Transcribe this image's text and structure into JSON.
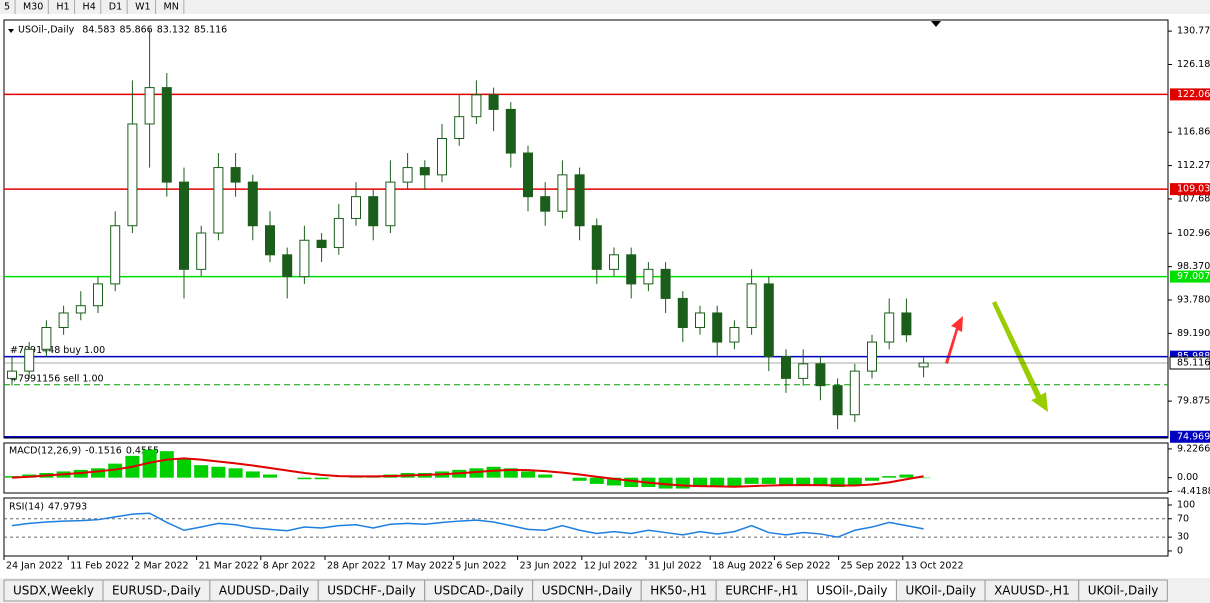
{
  "toolbar": {
    "timeframes": [
      "5",
      "M30",
      "H1",
      "H4",
      "D1",
      "W1",
      "MN"
    ]
  },
  "chart": {
    "symbol": "USOil-,Daily",
    "candle_color": "#1b5e1b",
    "open": [
      83,
      84,
      87,
      90,
      92,
      93,
      96,
      104,
      118,
      123,
      110,
      98,
      103,
      112,
      110,
      104,
      100,
      97,
      102,
      101,
      105,
      108,
      104,
      110,
      112,
      111,
      116,
      119,
      122,
      120,
      114,
      108,
      106,
      111,
      104,
      98,
      100,
      96,
      98,
      94,
      90,
      92,
      88,
      90,
      96,
      86,
      83,
      85,
      82,
      78,
      84,
      88,
      92,
      84.583
    ],
    "high": [
      86,
      88,
      91,
      93,
      95,
      97,
      106,
      124,
      131,
      125,
      112,
      104,
      114,
      114,
      111,
      106,
      101,
      104,
      103,
      107,
      110,
      109,
      113,
      114,
      113,
      118,
      122,
      124,
      123,
      121,
      115,
      110,
      113,
      112,
      105,
      101,
      101,
      99,
      99,
      95,
      93,
      93,
      91,
      98,
      97,
      87,
      87,
      86,
      83,
      85,
      89,
      94,
      94,
      85.866
    ],
    "low": [
      82,
      83,
      86,
      89,
      91,
      92,
      95,
      103,
      112,
      108,
      94,
      97,
      102,
      108,
      102,
      99,
      94,
      96,
      99,
      100,
      104,
      102,
      103,
      109,
      109,
      110,
      115,
      118,
      117,
      112,
      106,
      104,
      105,
      102,
      96,
      97,
      94,
      95,
      92,
      88,
      89,
      86,
      87,
      89,
      84,
      81,
      82,
      80,
      76,
      77,
      83,
      87,
      88,
      83.132
    ],
    "close": [
      84,
      87,
      90,
      92,
      93,
      96,
      104,
      118,
      123,
      110,
      98,
      103,
      112,
      110,
      104,
      100,
      97,
      102,
      101,
      105,
      108,
      104,
      110,
      112,
      111,
      116,
      119,
      122,
      120,
      114,
      108,
      106,
      111,
      104,
      98,
      100,
      96,
      98,
      94,
      90,
      92,
      88,
      90,
      96,
      86,
      83,
      85,
      82,
      78,
      84,
      88,
      92,
      89,
      85.116
    ],
    "ylim": [
      74.8,
      132.3
    ],
    "yticks": [
      {
        "value": 130.77,
        "label": "130.770"
      },
      {
        "value": 126.18,
        "label": "126.180"
      },
      {
        "value": 116.865,
        "label": "116.865"
      },
      {
        "value": 112.275,
        "label": "112.275"
      },
      {
        "value": 107.685,
        "label": "107.685"
      },
      {
        "value": 102.96,
        "label": "102.960"
      },
      {
        "value": 98.37,
        "label": "98.370"
      },
      {
        "value": 93.78,
        "label": "93.780"
      },
      {
        "value": 89.19,
        "label": "89.190"
      },
      {
        "value": 79.875,
        "label": "79.875"
      }
    ],
    "levels": [
      {
        "value": 122.066,
        "color": "#e00000"
      },
      {
        "value": 109.036,
        "color": "#e00000"
      },
      {
        "value": 97.007,
        "color": "#00e000"
      },
      {
        "value": 85.988,
        "color": "#0000c0"
      },
      {
        "value": 74.969,
        "color": "#0000c0"
      }
    ],
    "orders": [
      {
        "label": "#7991448 buy 1.00",
        "value": 85.988,
        "style": "solid"
      },
      {
        "label": "#7991156 sell 1.00",
        "value": 82.12,
        "style": "dashed"
      }
    ],
    "dates": [
      "24 Jan 2022",
      "11 Feb 2022",
      "2 Mar 2022",
      "21 Mar 2022",
      "8 Apr 2022",
      "28 Apr 2022",
      "17 May 2022",
      "5 Jun 2022",
      "23 Jun 2022",
      "12 Jul 2022",
      "31 Jul 2022",
      "18 Aug 2022",
      "6 Sep 2022",
      "25 Sep 2022",
      "13 Oct 2022"
    ],
    "macd": {
      "label": "MACD(12,26,9)",
      "hist_color": "#00d000",
      "signal_color": "#e00000",
      "main": [
        0.5,
        1,
        1.5,
        2,
        2.5,
        3,
        4.5,
        7,
        9,
        8.5,
        6,
        4,
        3.5,
        3,
        2,
        1,
        0,
        -0.5,
        -0.5,
        0,
        0.5,
        0.5,
        1,
        1.5,
        1.5,
        2,
        2.5,
        3,
        3.5,
        3,
        2,
        1,
        0,
        -1,
        -2,
        -2.5,
        -3,
        -3,
        -3.5,
        -3.5,
        -3,
        -3,
        -3,
        -2,
        -2,
        -2.5,
        -2.5,
        -2.5,
        -3,
        -2.5,
        -1,
        0.5,
        1,
        -0.1516
      ],
      "signal": [
        0,
        0.3,
        0.7,
        1.1,
        1.5,
        2,
        2.6,
        3.5,
        4.8,
        5.8,
        6.2,
        5.8,
        5.2,
        4.6,
        3.9,
        3.1,
        2.3,
        1.5,
        0.9,
        0.5,
        0.4,
        0.4,
        0.5,
        0.7,
        0.9,
        1.1,
        1.4,
        1.8,
        2.2,
        2.5,
        2.4,
        2.1,
        1.6,
        1,
        0.3,
        -0.4,
        -1,
        -1.6,
        -2.1,
        -2.5,
        -2.7,
        -2.8,
        -2.9,
        -2.7,
        -2.5,
        -2.4,
        -2.4,
        -2.4,
        -2.5,
        -2.5,
        -2.2,
        -1.5,
        -0.5,
        0.4555
      ],
      "ylim": [
        -4.6,
        10.8
      ],
      "yticks": [
        9.2266,
        {
          "value": 0,
          "label": "0.00"
        },
        -4.4188
      ]
    },
    "rsi": {
      "label": "RSI(14)",
      "color": "#1e7fe0",
      "values": [
        55,
        60,
        63,
        65,
        66,
        68,
        74,
        80,
        82,
        62,
        45,
        52,
        60,
        57,
        50,
        47,
        44,
        52,
        50,
        55,
        57,
        50,
        58,
        60,
        58,
        62,
        65,
        67,
        63,
        55,
        47,
        45,
        55,
        45,
        38,
        42,
        38,
        45,
        40,
        35,
        42,
        37,
        42,
        55,
        40,
        35,
        40,
        37,
        30,
        45,
        52,
        62,
        55,
        47.9793
      ],
      "ylim": [
        -11,
        113
      ],
      "yticks": [
        100,
        70,
        30,
        0
      ]
    }
  },
  "tabs": [
    "USDX,Weekly",
    "EURUSD-,Daily",
    "AUDUSD-,Daily",
    "USDCHF-,Daily",
    "USDCAD-,Daily",
    "USDCNH-,Daily",
    "HK50-,H1",
    "EURCHF-,H1",
    "USOil-,Daily",
    "UKOil-,Daily",
    "XAUUSD-,H1",
    "UKOil-,Daily"
  ],
  "active_tab": 8
}
